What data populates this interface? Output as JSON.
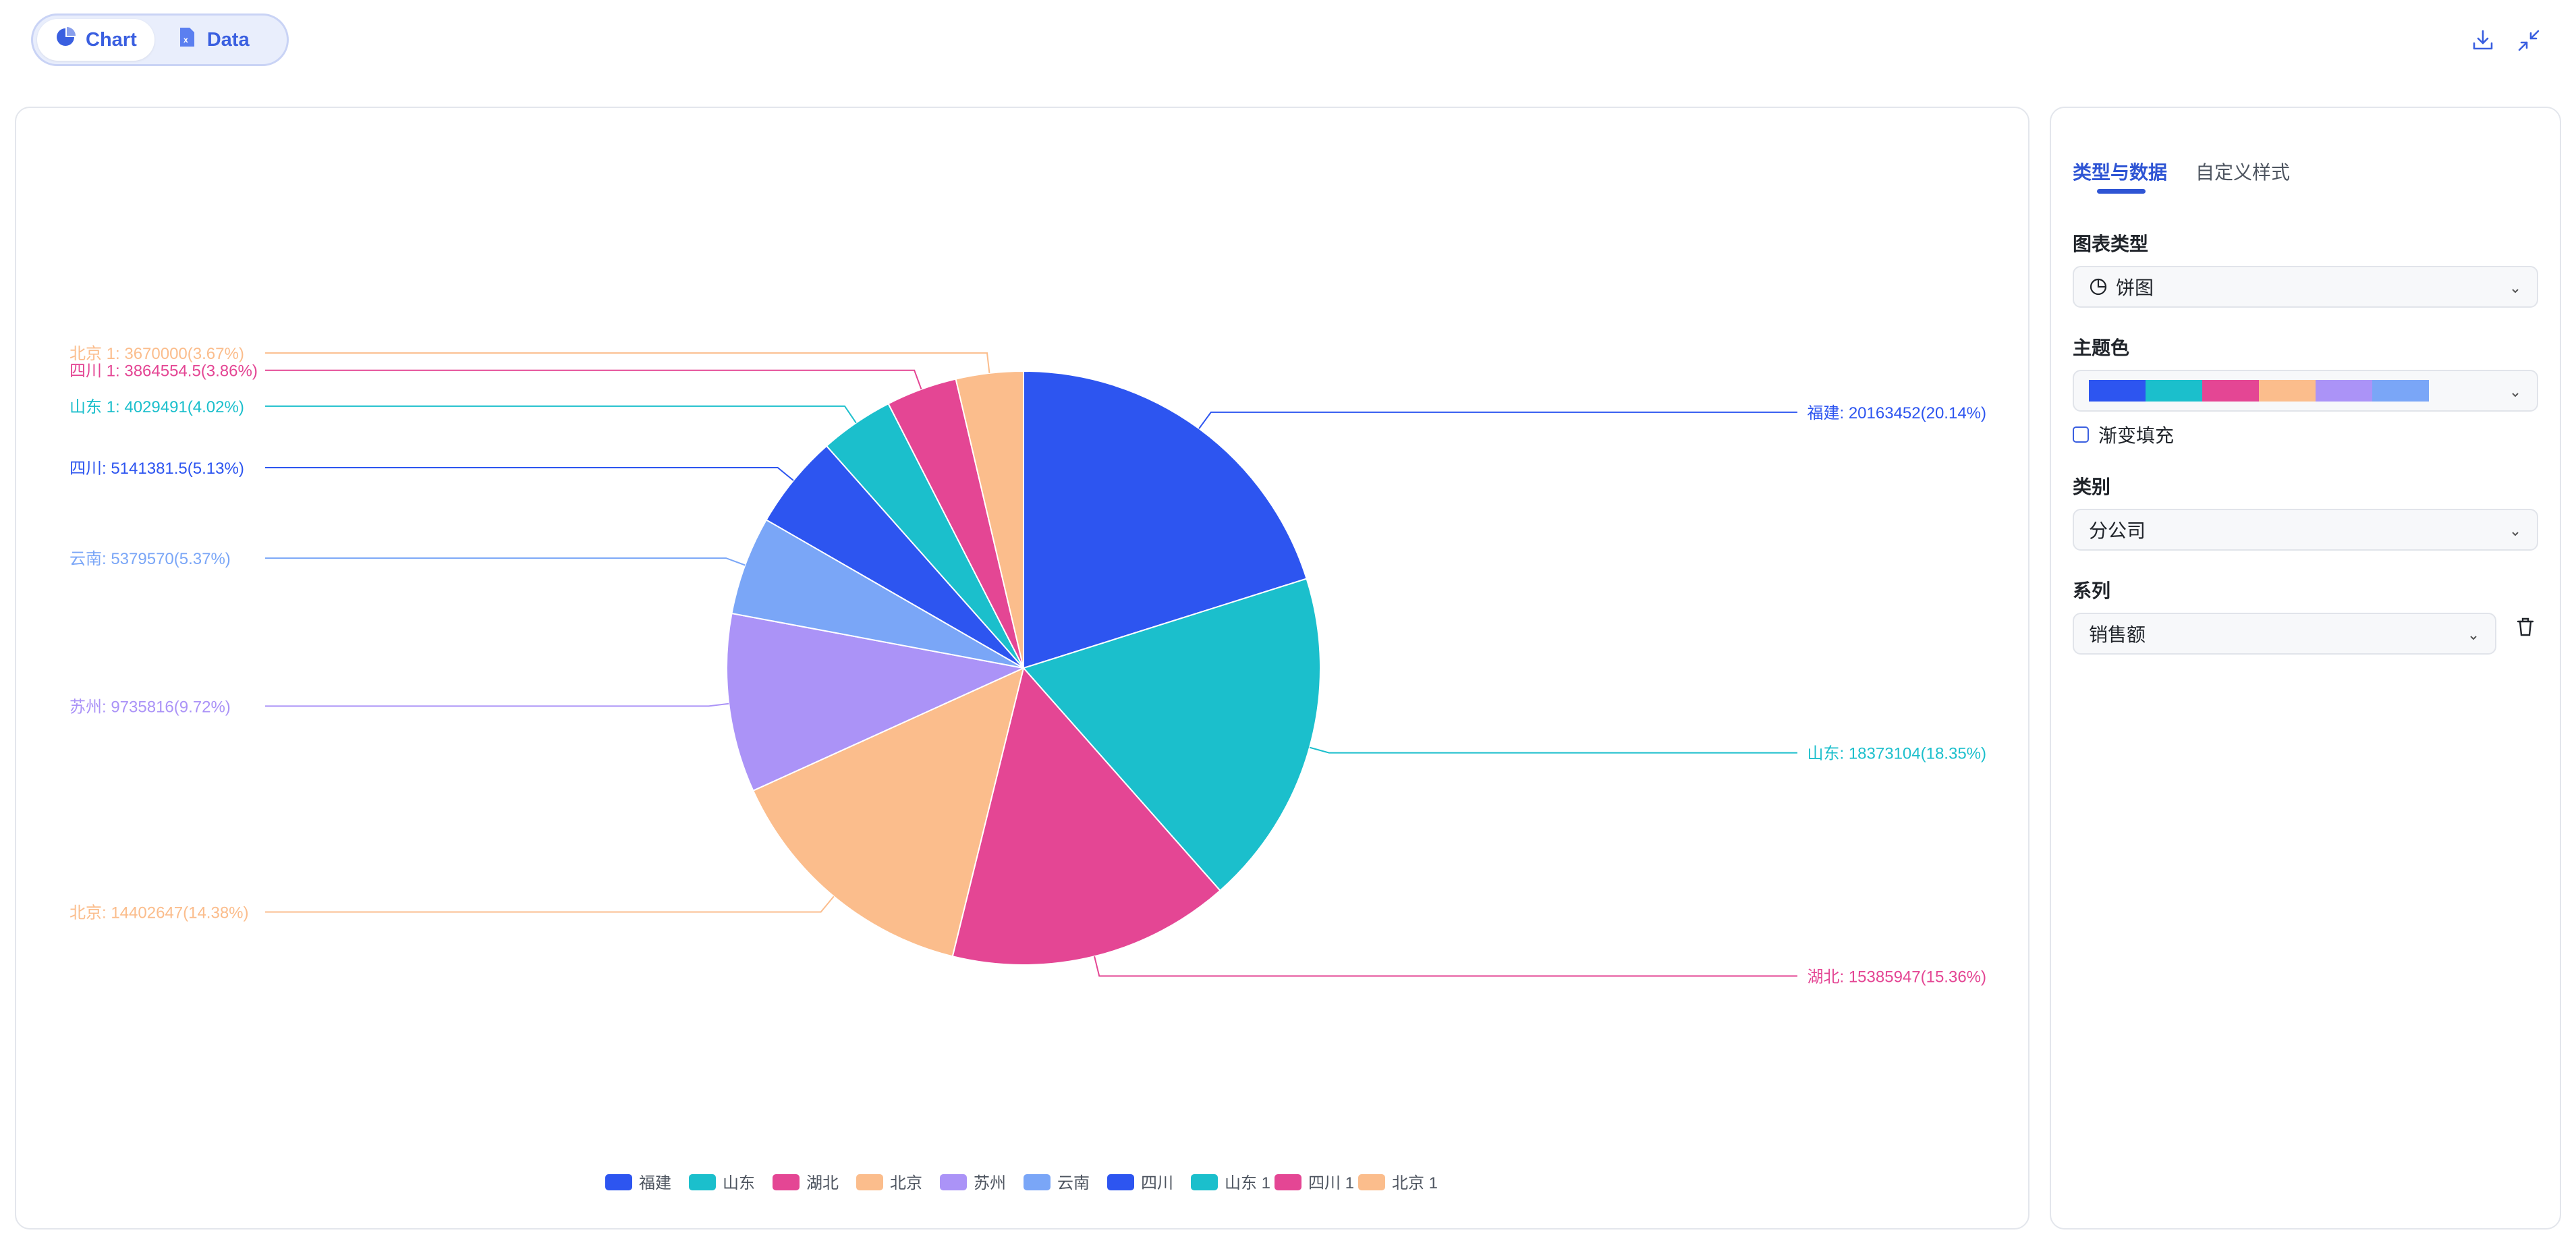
{
  "toolbar": {
    "view_tabs": [
      {
        "label": "Chart",
        "icon": "pie-chart-icon",
        "active": true
      },
      {
        "label": "Data",
        "icon": "excel-file-icon",
        "active": false
      }
    ],
    "download_icon": "download-icon",
    "collapse_icon": "collapse-icon",
    "accent_color": "#3a5fe0"
  },
  "chart_data": {
    "type": "pie",
    "categories": [
      "福建",
      "山东",
      "湖北",
      "北京",
      "苏州",
      "云南",
      "四川",
      "山东 1",
      "四川 1",
      "北京 1"
    ],
    "values": [
      20163452,
      18373104,
      15385947,
      14402647,
      9735816,
      5379570,
      5141381.5,
      4029491,
      3864554.5,
      3670000
    ],
    "labels": [
      "福建: 20163452(20.14%)",
      "山东: 18373104(18.35%)",
      "湖北: 15385947(15.36%)",
      "北京: 14402647(14.38%)",
      "苏州: 9735816(9.72%)",
      "云南: 5379570(5.37%)",
      "四川: 5141381.5(5.13%)",
      "山东 1: 4029491(4.02%)",
      "四川 1: 3864554.5(3.86%)",
      "北京 1: 3670000(3.67%)"
    ],
    "colors": [
      "#2d55f0",
      "#1bbfcc",
      "#e44694",
      "#fbbd8c",
      "#ab93f7",
      "#7aa6f7",
      "#2d55f0",
      "#1bbfcc",
      "#e44694",
      "#fbbd8c"
    ],
    "legend_position": "bottom"
  },
  "panel": {
    "tabs": [
      {
        "label": "类型与数据",
        "active": true
      },
      {
        "label": "自定义样式",
        "active": false
      }
    ],
    "chart_type_label": "图表类型",
    "chart_type_value": "饼图",
    "theme_label": "主题色",
    "theme_colors": [
      "#2d55f0",
      "#1bbfcc",
      "#e44694",
      "#fbbd8c",
      "#ab93f7",
      "#7aa6f7"
    ],
    "gradient_label": "渐变填充",
    "gradient_checked": false,
    "category_label": "类别",
    "category_value": "分公司",
    "series_label": "系列",
    "series_value": "销售额"
  }
}
